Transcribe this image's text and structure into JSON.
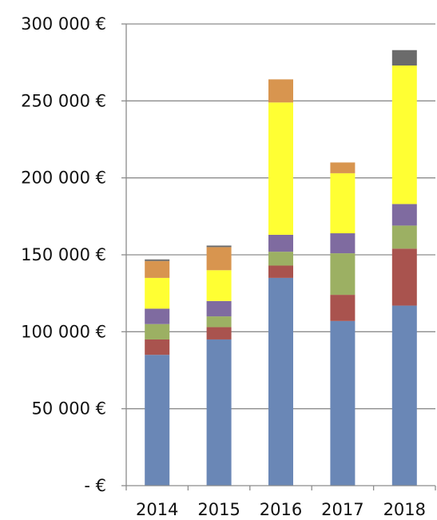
{
  "chart_data": {
    "type": "bar",
    "stacked": true,
    "title": "",
    "xlabel": "",
    "ylabel": "",
    "categories": [
      "2014",
      "2015",
      "2016",
      "2017",
      "2018"
    ],
    "ylim": [
      0,
      300000
    ],
    "y_ticks": [
      0,
      50000,
      100000,
      150000,
      200000,
      250000,
      300000
    ],
    "y_tick_labels": [
      "-   €",
      "50 000 €",
      "100 000 €",
      "150 000 €",
      "200 000 €",
      "250 000 €",
      "300 000 €"
    ],
    "grid": "horizontal",
    "legend": "none",
    "series": [
      {
        "color": "#6A87B6",
        "values": [
          85000,
          95000,
          135000,
          107000,
          117000
        ]
      },
      {
        "color": "#A9534E",
        "values": [
          10000,
          8000,
          8000,
          17000,
          37000
        ]
      },
      {
        "color": "#9CB063",
        "values": [
          10000,
          7000,
          9000,
          27000,
          15000
        ]
      },
      {
        "color": "#7F6BA0",
        "values": [
          10000,
          10000,
          11000,
          13000,
          14000
        ]
      },
      {
        "color": "#FFFF33",
        "values": [
          20000,
          20000,
          86000,
          39000,
          90000
        ]
      },
      {
        "color": "#D8954F",
        "values": [
          11000,
          15000,
          15000,
          7000,
          0
        ]
      },
      {
        "color": "#6B6B6B",
        "values": [
          1000,
          1000,
          0,
          0,
          10000
        ]
      }
    ]
  }
}
